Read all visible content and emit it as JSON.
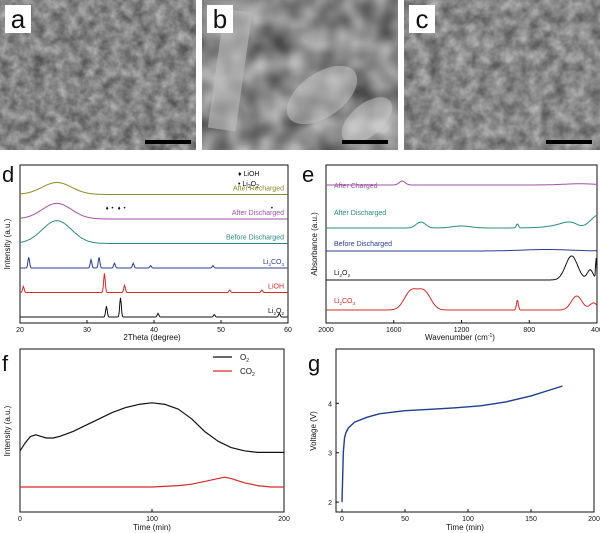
{
  "panels": {
    "a": {
      "letter": "a"
    },
    "b": {
      "letter": "b"
    },
    "c": {
      "letter": "c"
    },
    "d": {
      "letter": "d"
    },
    "e": {
      "letter": "e"
    },
    "f": {
      "letter": "f"
    },
    "g": {
      "letter": "g"
    }
  },
  "chart_data": [
    {
      "panel": "d",
      "type": "line",
      "xlabel": "2Theta (degree)",
      "ylabel": "Intensity (a.u.)",
      "xlim": [
        20,
        60
      ],
      "xticks": [
        "20",
        "30",
        "40",
        "50",
        "60"
      ],
      "legend": [
        {
          "marker": "♦",
          "label": "LiOH"
        },
        {
          "marker": "•",
          "label": "Li2O2",
          "main": "Li",
          "sub": "2",
          "main2": "O",
          "sub2": "2"
        }
      ],
      "series": [
        {
          "name": "After Recharged",
          "label": "After Recharged",
          "color": "#8b8b2a",
          "offset": 6,
          "peaks": [
            [
              25.5,
              1.0
            ]
          ],
          "broad": true
        },
        {
          "name": "After Discharged",
          "label": "After Discharged",
          "color": "#a052a8",
          "offset": 5,
          "peaks": [
            [
              25.5,
              1.3
            ]
          ],
          "broad": true
        },
        {
          "name": "Before Discharged",
          "label": "Before Discharged",
          "color": "#2a8a80",
          "offset": 4,
          "peaks": [
            [
              25.5,
              1.9
            ]
          ],
          "broad": true
        },
        {
          "name": "Li2CO3",
          "label": "Li2CO3",
          "main": "Li",
          "sub": "2",
          "main2": "CO",
          "sub2": "3",
          "color": "#2a3c96",
          "offset": 3,
          "peaks": [
            [
              21.3,
              0.9
            ],
            [
              30.6,
              0.7
            ],
            [
              31.8,
              0.9
            ],
            [
              34.1,
              0.4
            ],
            [
              36.9,
              0.4
            ],
            [
              39.5,
              0.2
            ],
            [
              48.8,
              0.2
            ]
          ]
        },
        {
          "name": "LiOH",
          "label": "LiOH",
          "color": "#d42a2a",
          "offset": 2,
          "peaks": [
            [
              20.5,
              0.5
            ],
            [
              32.6,
              1.6
            ],
            [
              35.6,
              0.6
            ],
            [
              51.3,
              0.2
            ],
            [
              56.1,
              0.2
            ]
          ]
        },
        {
          "name": "Li2O2",
          "label": "Li2O2",
          "main": "Li",
          "sub": "2",
          "main2": "O",
          "sub2": "2",
          "color": "#111111",
          "offset": 1,
          "peaks": [
            [
              32.9,
              0.9
            ],
            [
              35.0,
              1.6
            ],
            [
              40.6,
              0.3
            ],
            [
              49.0,
              0.2
            ],
            [
              58.7,
              0.3
            ]
          ]
        }
      ]
    },
    {
      "panel": "e",
      "type": "line",
      "xlabel": "Wavenumber (cm-1)",
      "xlabel_main": "Wavenumber (cm",
      "xlabel_sup": "-1",
      "xlabel_end": ")",
      "ylabel": "Absorbance (a.u.)",
      "xlim": [
        2000,
        400
      ],
      "xticks": [
        "2000",
        "1600",
        "1200",
        "800",
        "400"
      ],
      "series": [
        {
          "name": "After Charged",
          "label": "After Charged",
          "color": "#a052a8"
        },
        {
          "name": "After Discharged",
          "label": "After Discharged",
          "color": "#2a8a80"
        },
        {
          "name": "Before Discharged",
          "label": "Before Discharged",
          "color": "#2a3c96"
        },
        {
          "name": "Li2O2",
          "label": "Li2O2",
          "main": "Li",
          "sub": "2",
          "main2": "O",
          "sub2": "2",
          "color": "#111111"
        },
        {
          "name": "Li2CO3",
          "label": "Li2CO3",
          "main": "Li",
          "sub": "2",
          "main2": "CO",
          "sub2": "3",
          "color": "#d42a2a"
        }
      ]
    },
    {
      "panel": "f",
      "type": "line",
      "xlabel": "Time (min)",
      "ylabel": "Intensity (a.u.)",
      "xlim": [
        0,
        200
      ],
      "xticks": [
        "0",
        "100",
        "200"
      ],
      "series": [
        {
          "name": "O2",
          "main": "O",
          "sub": "2",
          "color": "#111111",
          "x": [
            0,
            4,
            8,
            12,
            16,
            20,
            25,
            30,
            40,
            50,
            60,
            70,
            80,
            90,
            100,
            110,
            120,
            130,
            140,
            150,
            160,
            170,
            180,
            190,
            200
          ],
          "y": [
            0.42,
            0.47,
            0.51,
            0.52,
            0.51,
            0.5,
            0.5,
            0.51,
            0.54,
            0.58,
            0.62,
            0.66,
            0.69,
            0.71,
            0.72,
            0.71,
            0.68,
            0.62,
            0.54,
            0.48,
            0.44,
            0.42,
            0.41,
            0.41,
            0.41
          ]
        },
        {
          "name": "CO2",
          "main": "CO",
          "sub": "2",
          "color": "#d42a2a",
          "x": [
            0,
            20,
            40,
            60,
            80,
            100,
            120,
            130,
            140,
            150,
            155,
            160,
            170,
            180,
            190,
            200
          ],
          "y": [
            0.0,
            0.0,
            0.0,
            0.0,
            0.0,
            0.0,
            0.01,
            0.02,
            0.04,
            0.06,
            0.07,
            0.06,
            0.03,
            0.01,
            0.0,
            0.0
          ]
        }
      ]
    },
    {
      "panel": "g",
      "type": "line",
      "xlabel": "Time (min)",
      "ylabel": "Voltage (V)",
      "xlim": [
        0,
        200
      ],
      "ylim": [
        1.8,
        5.1
      ],
      "xticks": [
        "0",
        "50",
        "100",
        "150",
        "200"
      ],
      "yticks": [
        "2",
        "3",
        "4"
      ],
      "series": [
        {
          "name": "",
          "color": "#1f3f8c",
          "x": [
            0,
            1,
            2,
            3,
            5,
            10,
            20,
            30,
            50,
            70,
            90,
            110,
            130,
            150,
            165,
            175
          ],
          "y": [
            2.0,
            3.0,
            3.3,
            3.4,
            3.5,
            3.62,
            3.72,
            3.79,
            3.85,
            3.88,
            3.91,
            3.95,
            4.03,
            4.15,
            4.27,
            4.35
          ]
        }
      ]
    }
  ]
}
